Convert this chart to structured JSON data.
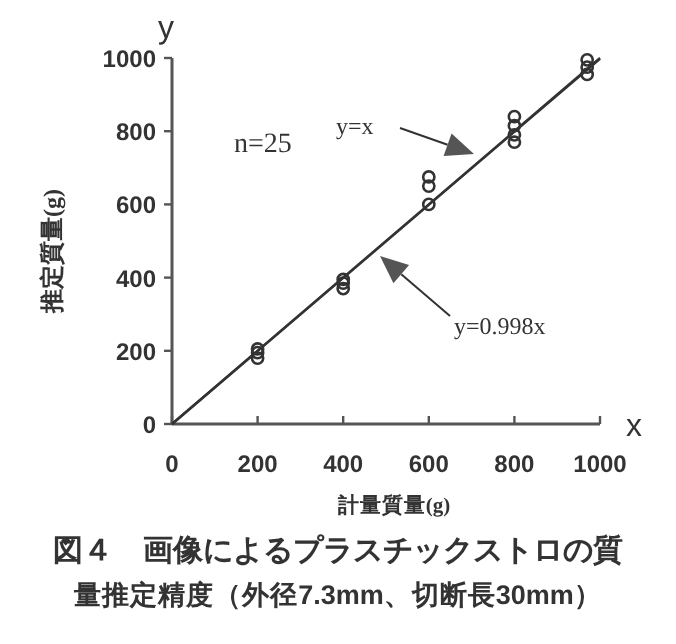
{
  "chart_data": {
    "type": "scatter",
    "title": "図４　画像によるプラスチックストロの質量推定精度（外径7.3mm、切断長30mm）",
    "xlabel": "計量質量(g)",
    "ylabel": "推定質量(g)",
    "annotations": [
      "y",
      "x",
      "n=25",
      "y=x",
      "y=0.998x"
    ],
    "xlim": [
      0,
      1000
    ],
    "ylim": [
      0,
      1000
    ],
    "xticks": [
      0,
      200,
      400,
      600,
      800,
      1000
    ],
    "yticks": [
      0,
      200,
      400,
      600,
      800,
      1000
    ],
    "grid": false,
    "marker": "circle",
    "series": [
      {
        "type": "scatter",
        "color": "#333333",
        "x": [
          200,
          200,
          200,
          400,
          400,
          400,
          600,
          600,
          600,
          800,
          800,
          800,
          800,
          970,
          970,
          970
        ],
        "values": [
          180,
          195,
          205,
          370,
          385,
          395,
          600,
          650,
          675,
          770,
          790,
          815,
          840,
          955,
          975,
          995
        ]
      },
      {
        "type": "line",
        "marker": "none",
        "color": "#333333",
        "x": [
          0,
          1000
        ],
        "values": [
          0,
          1000
        ]
      },
      {
        "type": "line",
        "marker": "none",
        "color": "#333333",
        "x": [
          0,
          1000
        ],
        "values": [
          0,
          998
        ]
      }
    ]
  }
}
